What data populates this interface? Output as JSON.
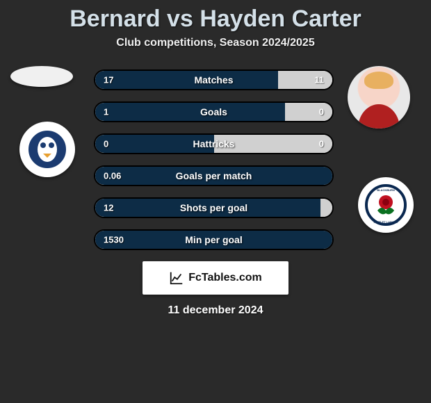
{
  "title": "Bernard vs Hayden Carter",
  "subtitle": "Club competitions, Season 2024/2025",
  "date": "11 december 2024",
  "brand": "FcTables.com",
  "colors": {
    "bar_left": "#0d2c46",
    "bar_right": "#d0d0d0",
    "bar_border": "#000000",
    "background": "#2a2a2a",
    "title_color": "#d4e0e8",
    "text_color": "#ffffff"
  },
  "stats": [
    {
      "label": "Matches",
      "left_val": "17",
      "right_val": "11",
      "left_pct": 77,
      "right_pct": 23
    },
    {
      "label": "Goals",
      "left_val": "1",
      "right_val": "0",
      "left_pct": 80,
      "right_pct": 20
    },
    {
      "label": "Hattricks",
      "left_val": "0",
      "right_val": "0",
      "left_pct": 50,
      "right_pct": 50
    },
    {
      "label": "Goals per match",
      "left_val": "0.06",
      "right_val": "",
      "left_pct": 100,
      "right_pct": 0
    },
    {
      "label": "Shots per goal",
      "left_val": "12",
      "right_val": "",
      "left_pct": 95,
      "right_pct": 5
    },
    {
      "label": "Min per goal",
      "left_val": "1530",
      "right_val": "",
      "left_pct": 100,
      "right_pct": 0
    }
  ],
  "badges": {
    "left_name": "sheffield-wednesday-badge",
    "right_name": "blackburn-rovers-badge"
  },
  "players": {
    "left": "Bernard",
    "right": "Hayden Carter"
  }
}
